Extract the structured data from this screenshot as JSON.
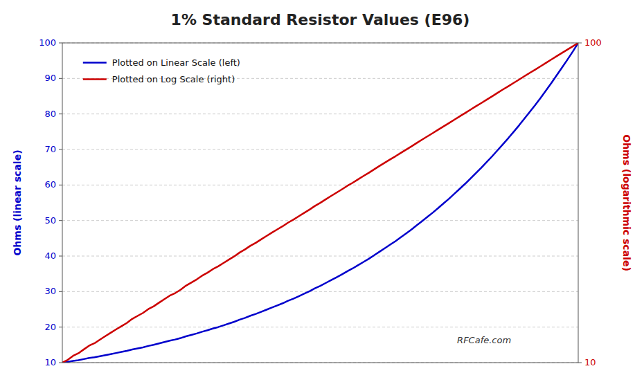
{
  "chart_data": {
    "type": "line",
    "title": "1% Standard Resistor Values  (E96)",
    "y_label": "Ohms  (linear scale)",
    "y2_label": "Ohms  (logarithmic scale)",
    "categories": [
      null,
      null,
      null,
      null,
      null,
      null,
      null,
      null,
      null,
      null,
      null,
      null,
      null,
      null,
      null,
      null,
      null,
      null,
      null,
      null,
      null,
      null,
      null,
      null,
      null,
      null,
      null,
      null,
      null,
      null,
      null,
      null,
      null,
      null,
      null,
      null,
      null,
      null,
      null,
      null,
      null,
      null,
      null,
      null,
      null,
      null,
      null,
      null,
      null,
      null,
      null,
      null,
      null,
      null,
      null,
      null,
      null,
      null,
      null,
      null,
      null,
      null,
      null,
      null,
      null,
      null,
      null,
      null,
      null,
      null,
      null,
      null,
      null,
      null,
      null,
      null,
      null,
      null,
      null,
      null,
      null,
      null,
      null,
      null,
      null,
      null,
      null,
      null,
      null,
      null,
      null,
      null,
      null,
      null,
      null,
      null,
      null
    ],
    "ylim": [
      10,
      100
    ],
    "yticks": [
      10,
      20,
      30,
      40,
      50,
      60,
      70,
      80,
      90,
      100
    ],
    "y2lim": [
      10,
      100
    ],
    "y2ticks": [
      10,
      100
    ],
    "log": "y2",
    "grid": true,
    "legend": "upper left",
    "tick_labels": "y",
    "annotations": [
      {
        "text": "RFCafe.com"
      }
    ],
    "series": [
      {
        "name": "Plotted on Linear Scale (left)",
        "color": "#0000cc",
        "values": [
          10.0,
          10.2,
          10.5,
          10.7,
          11.0,
          11.3,
          11.5,
          11.8,
          12.1,
          12.4,
          12.7,
          13.0,
          13.3,
          13.7,
          14.0,
          14.3,
          14.7,
          15.0,
          15.4,
          15.8,
          16.2,
          16.5,
          16.9,
          17.4,
          17.8,
          18.2,
          18.7,
          19.1,
          19.6,
          20.0,
          20.5,
          21.0,
          21.5,
          22.1,
          22.6,
          23.2,
          23.7,
          24.3,
          24.9,
          25.5,
          26.1,
          26.7,
          27.4,
          28.0,
          28.7,
          29.4,
          30.1,
          30.9,
          31.6,
          32.4,
          33.2,
          34.0,
          34.8,
          35.7,
          36.5,
          37.4,
          38.3,
          39.2,
          40.2,
          41.2,
          42.2,
          43.2,
          44.2,
          45.3,
          46.4,
          47.5,
          48.7,
          49.9,
          51.1,
          52.3,
          53.6,
          54.9,
          56.2,
          57.6,
          59.0,
          60.4,
          61.9,
          63.4,
          64.9,
          66.5,
          68.1,
          69.8,
          71.5,
          73.2,
          75.0,
          76.8,
          78.7,
          80.6,
          82.5,
          84.5,
          86.6,
          88.7,
          90.9,
          93.1,
          95.3,
          97.6,
          100.0
        ]
      },
      {
        "name": "Plotted on Log Scale (right)",
        "color": "#cc0000",
        "axis": "y2",
        "values": [
          10.0,
          10.2,
          10.5,
          10.7,
          11.0,
          11.3,
          11.5,
          11.8,
          12.1,
          12.4,
          12.7,
          13.0,
          13.3,
          13.7,
          14.0,
          14.3,
          14.7,
          15.0,
          15.4,
          15.8,
          16.2,
          16.5,
          16.9,
          17.4,
          17.8,
          18.2,
          18.7,
          19.1,
          19.6,
          20.0,
          20.5,
          21.0,
          21.5,
          22.1,
          22.6,
          23.2,
          23.7,
          24.3,
          24.9,
          25.5,
          26.1,
          26.7,
          27.4,
          28.0,
          28.7,
          29.4,
          30.1,
          30.9,
          31.6,
          32.4,
          33.2,
          34.0,
          34.8,
          35.7,
          36.5,
          37.4,
          38.3,
          39.2,
          40.2,
          41.2,
          42.2,
          43.2,
          44.2,
          45.3,
          46.4,
          47.5,
          48.7,
          49.9,
          51.1,
          52.3,
          53.6,
          54.9,
          56.2,
          57.6,
          59.0,
          60.4,
          61.9,
          63.4,
          64.9,
          66.5,
          68.1,
          69.8,
          71.5,
          73.2,
          75.0,
          76.8,
          78.7,
          80.6,
          82.5,
          84.5,
          86.6,
          88.7,
          90.9,
          93.1,
          95.3,
          97.6,
          100.0
        ]
      }
    ]
  }
}
